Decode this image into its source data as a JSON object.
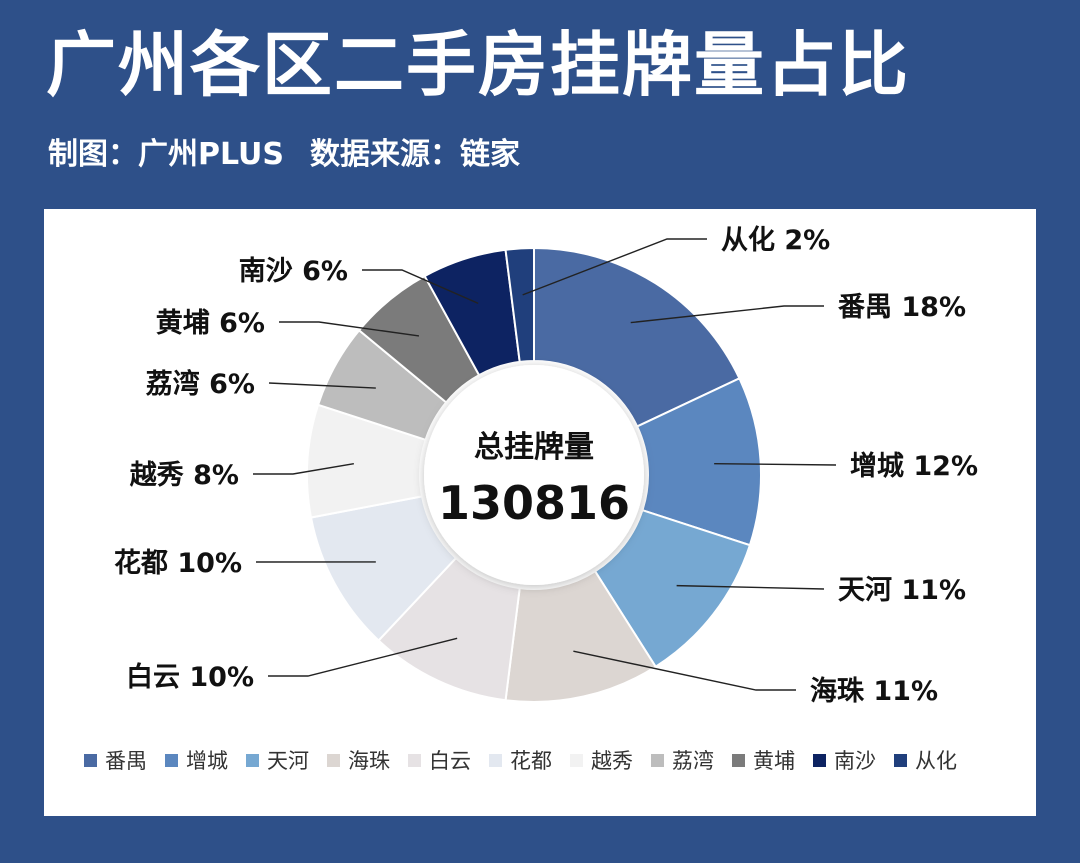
{
  "header": {
    "title": "广州各区二手房挂牌量占比",
    "credit": "制图：广州PLUS",
    "source": "数据来源：链家"
  },
  "chart_data": {
    "type": "pie",
    "donut": true,
    "center_label": "总挂牌量",
    "center_value": "130816",
    "legend_position": "bottom",
    "slices": [
      {
        "name": "番禺",
        "value": 18,
        "label": "番禺 18%",
        "color": "#4a6aa3"
      },
      {
        "name": "增城",
        "value": 12,
        "label": "增城 12%",
        "color": "#5b87bf"
      },
      {
        "name": "天河",
        "value": 11,
        "label": "天河 11%",
        "color": "#76a8d2"
      },
      {
        "name": "海珠",
        "value": 11,
        "label": "海珠 11%",
        "color": "#dcd6d2"
      },
      {
        "name": "白云",
        "value": 10,
        "label": "白云 10%",
        "color": "#e6e2e4"
      },
      {
        "name": "花都",
        "value": 10,
        "label": "花都 10%",
        "color": "#e3e8f0"
      },
      {
        "name": "越秀",
        "value": 8,
        "label": "越秀 8%",
        "color": "#f2f2f2"
      },
      {
        "name": "荔湾",
        "value": 6,
        "label": "荔湾 6%",
        "color": "#bdbdbd"
      },
      {
        "name": "黄埔",
        "value": 6,
        "label": "黄埔 6%",
        "color": "#7b7b7b"
      },
      {
        "name": "南沙",
        "value": 6,
        "label": "南沙 6%",
        "color": "#0d2362"
      },
      {
        "name": "从化",
        "value": 2,
        "label": "从化 2%",
        "color": "#203f7c"
      }
    ]
  }
}
